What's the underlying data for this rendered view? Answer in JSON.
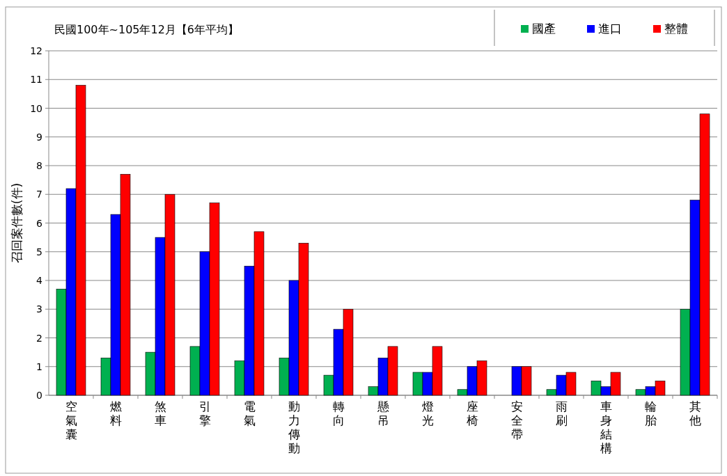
{
  "chart_data": {
    "type": "bar",
    "title": "民國100年~105年12月【6年平均】",
    "ylabel": "召回案件數(件)",
    "categories": [
      "空氣囊",
      "燃料",
      "煞車",
      "引擎",
      "電氣",
      "動力傳動",
      "轉向",
      "懸吊",
      "燈光",
      "座椅",
      "安全帶",
      "雨刷",
      "車身結構",
      "輪胎",
      "其他"
    ],
    "series": [
      {
        "name": "國產",
        "color": "#00b050",
        "values": [
          3.7,
          1.3,
          1.5,
          1.7,
          1.2,
          1.3,
          0.7,
          0.3,
          0.8,
          0.2,
          0,
          0.2,
          0.5,
          0.2,
          3.0
        ]
      },
      {
        "name": "進口",
        "color": "#0000ff",
        "values": [
          7.2,
          6.3,
          5.5,
          5.0,
          4.5,
          4.0,
          2.3,
          1.3,
          0.8,
          1.0,
          1.0,
          0.7,
          0.3,
          0.3,
          6.8
        ]
      },
      {
        "name": "整體",
        "color": "#ff0000",
        "values": [
          10.8,
          7.7,
          7.0,
          6.7,
          5.7,
          5.3,
          3.0,
          1.7,
          1.7,
          1.2,
          1.0,
          0.8,
          0.8,
          0.5,
          9.8
        ]
      }
    ],
    "ylim": [
      0,
      12
    ],
    "yticks": [
      0,
      1,
      2,
      3,
      4,
      5,
      6,
      7,
      8,
      9,
      10,
      11,
      12
    ],
    "grid": "y",
    "legend": "top right"
  }
}
